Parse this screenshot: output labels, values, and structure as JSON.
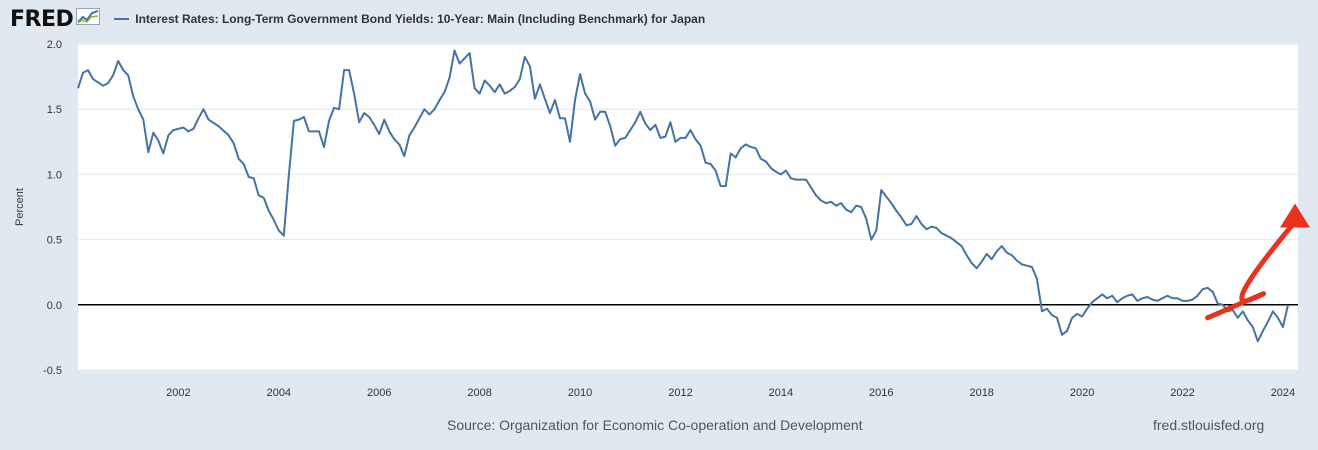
{
  "header": {
    "logo_text": "FRED",
    "legend_label": "Interest Rates: Long-Term Government Bond Yields: 10-Year: Main (Including Benchmark) for Japan"
  },
  "footer": {
    "source": "Source: Organization for Economic Co-operation and Development",
    "credit": "fred.stlouisfed.org"
  },
  "colors": {
    "series": "#4572a7",
    "arrow": "#e8321e",
    "zero_line": "#000000",
    "grid": "#e6e6e6"
  },
  "chart_data": {
    "type": "line",
    "title": "",
    "xlabel": "",
    "ylabel": "Percent",
    "xlim": [
      2000.0,
      2024.3
    ],
    "ylim": [
      -0.5,
      2.0
    ],
    "yticks": [
      "2.0",
      "1.5",
      "1.0",
      "0.5",
      "0.0",
      "-0.5"
    ],
    "ytick_values": [
      2.0,
      1.5,
      1.0,
      0.5,
      0.0,
      -0.5
    ],
    "xticks": [
      "2002",
      "2004",
      "2006",
      "2008",
      "2010",
      "2012",
      "2014",
      "2016",
      "2018",
      "2020",
      "2022",
      "2024"
    ],
    "xtick_values": [
      2002,
      2004,
      2006,
      2008,
      2010,
      2012,
      2014,
      2016,
      2018,
      2020,
      2022,
      2024
    ],
    "grid": "horizontal",
    "zero_line": true,
    "annotations": [
      {
        "type": "arrow",
        "from": [
          2022.5,
          -0.1
        ],
        "to": [
          2024.3,
          0.7
        ]
      }
    ],
    "series": [
      {
        "name": "Interest Rates: Long-Term Government Bond Yields: 10-Year: Main (Including Benchmark) for Japan",
        "points": [
          [
            2000.0,
            1.66
          ],
          [
            2000.1,
            1.78
          ],
          [
            2000.2,
            1.8
          ],
          [
            2000.3,
            1.73
          ],
          [
            2000.5,
            1.68
          ],
          [
            2000.6,
            1.7
          ],
          [
            2000.7,
            1.76
          ],
          [
            2000.8,
            1.87
          ],
          [
            2000.9,
            1.8
          ],
          [
            2001.0,
            1.76
          ],
          [
            2001.1,
            1.6
          ],
          [
            2001.2,
            1.5
          ],
          [
            2001.3,
            1.42
          ],
          [
            2001.4,
            1.17
          ],
          [
            2001.5,
            1.32
          ],
          [
            2001.6,
            1.26
          ],
          [
            2001.7,
            1.16
          ],
          [
            2001.8,
            1.3
          ],
          [
            2001.9,
            1.34
          ],
          [
            2002.0,
            1.35
          ],
          [
            2002.1,
            1.36
          ],
          [
            2002.2,
            1.33
          ],
          [
            2002.3,
            1.35
          ],
          [
            2002.4,
            1.43
          ],
          [
            2002.5,
            1.5
          ],
          [
            2002.6,
            1.42
          ],
          [
            2002.8,
            1.37
          ],
          [
            2003.0,
            1.3
          ],
          [
            2003.1,
            1.24
          ],
          [
            2003.2,
            1.12
          ],
          [
            2003.3,
            1.08
          ],
          [
            2003.4,
            0.98
          ],
          [
            2003.5,
            0.97
          ],
          [
            2003.6,
            0.84
          ],
          [
            2003.7,
            0.82
          ],
          [
            2003.8,
            0.72
          ],
          [
            2003.9,
            0.65
          ],
          [
            2004.0,
            0.57
          ],
          [
            2004.1,
            0.53
          ],
          [
            2004.2,
            1.0
          ],
          [
            2004.3,
            1.41
          ],
          [
            2004.4,
            1.42
          ],
          [
            2004.5,
            1.44
          ],
          [
            2004.6,
            1.33
          ],
          [
            2004.8,
            1.33
          ],
          [
            2004.9,
            1.21
          ],
          [
            2005.0,
            1.41
          ],
          [
            2005.1,
            1.51
          ],
          [
            2005.2,
            1.5
          ],
          [
            2005.3,
            1.8
          ],
          [
            2005.4,
            1.8
          ],
          [
            2005.5,
            1.62
          ],
          [
            2005.6,
            1.4
          ],
          [
            2005.7,
            1.47
          ],
          [
            2005.8,
            1.44
          ],
          [
            2005.9,
            1.38
          ],
          [
            2006.0,
            1.31
          ],
          [
            2006.1,
            1.42
          ],
          [
            2006.2,
            1.33
          ],
          [
            2006.3,
            1.27
          ],
          [
            2006.4,
            1.23
          ],
          [
            2006.5,
            1.14
          ],
          [
            2006.6,
            1.3
          ],
          [
            2006.7,
            1.36
          ],
          [
            2006.8,
            1.43
          ],
          [
            2006.9,
            1.5
          ],
          [
            2007.0,
            1.46
          ],
          [
            2007.1,
            1.5
          ],
          [
            2007.2,
            1.57
          ],
          [
            2007.3,
            1.63
          ],
          [
            2007.4,
            1.74
          ],
          [
            2007.5,
            1.95
          ],
          [
            2007.6,
            1.85
          ],
          [
            2007.7,
            1.89
          ],
          [
            2007.8,
            1.93
          ],
          [
            2007.9,
            1.66
          ],
          [
            2008.0,
            1.62
          ],
          [
            2008.1,
            1.72
          ],
          [
            2008.2,
            1.68
          ],
          [
            2008.3,
            1.63
          ],
          [
            2008.4,
            1.69
          ],
          [
            2008.5,
            1.62
          ],
          [
            2008.6,
            1.64
          ],
          [
            2008.7,
            1.67
          ],
          [
            2008.8,
            1.73
          ],
          [
            2008.9,
            1.9
          ],
          [
            2009.0,
            1.83
          ],
          [
            2009.1,
            1.58
          ],
          [
            2009.2,
            1.69
          ],
          [
            2009.3,
            1.58
          ],
          [
            2009.4,
            1.47
          ],
          [
            2009.5,
            1.57
          ],
          [
            2009.6,
            1.43
          ],
          [
            2009.7,
            1.43
          ],
          [
            2009.8,
            1.25
          ],
          [
            2009.9,
            1.57
          ],
          [
            2010.0,
            1.77
          ],
          [
            2010.1,
            1.62
          ],
          [
            2010.2,
            1.56
          ],
          [
            2010.3,
            1.42
          ],
          [
            2010.4,
            1.48
          ],
          [
            2010.5,
            1.48
          ],
          [
            2010.6,
            1.37
          ],
          [
            2010.7,
            1.22
          ],
          [
            2010.8,
            1.27
          ],
          [
            2010.9,
            1.28
          ],
          [
            2011.0,
            1.34
          ],
          [
            2011.1,
            1.4
          ],
          [
            2011.2,
            1.48
          ],
          [
            2011.3,
            1.39
          ],
          [
            2011.4,
            1.34
          ],
          [
            2011.5,
            1.38
          ],
          [
            2011.6,
            1.28
          ],
          [
            2011.7,
            1.29
          ],
          [
            2011.8,
            1.4
          ],
          [
            2011.9,
            1.25
          ],
          [
            2012.0,
            1.28
          ],
          [
            2012.1,
            1.28
          ],
          [
            2012.2,
            1.34
          ],
          [
            2012.3,
            1.27
          ],
          [
            2012.4,
            1.22
          ],
          [
            2012.5,
            1.09
          ],
          [
            2012.6,
            1.08
          ],
          [
            2012.7,
            1.03
          ],
          [
            2012.8,
            0.91
          ],
          [
            2012.9,
            0.91
          ],
          [
            2013.0,
            1.16
          ],
          [
            2013.1,
            1.13
          ],
          [
            2013.2,
            1.2
          ],
          [
            2013.3,
            1.23
          ],
          [
            2013.4,
            1.21
          ],
          [
            2013.5,
            1.2
          ],
          [
            2013.6,
            1.12
          ],
          [
            2013.7,
            1.1
          ],
          [
            2013.8,
            1.05
          ],
          [
            2013.9,
            1.02
          ],
          [
            2014.0,
            1.0
          ],
          [
            2014.1,
            1.03
          ],
          [
            2014.2,
            0.97
          ],
          [
            2014.3,
            0.96
          ],
          [
            2014.4,
            0.96
          ],
          [
            2014.5,
            0.96
          ],
          [
            2014.6,
            0.9
          ],
          [
            2014.7,
            0.84
          ],
          [
            2014.8,
            0.8
          ],
          [
            2014.9,
            0.78
          ],
          [
            2015.0,
            0.79
          ],
          [
            2015.1,
            0.76
          ],
          [
            2015.2,
            0.78
          ],
          [
            2015.3,
            0.73
          ],
          [
            2015.4,
            0.71
          ],
          [
            2015.5,
            0.76
          ],
          [
            2015.6,
            0.75
          ],
          [
            2015.7,
            0.66
          ],
          [
            2015.8,
            0.5
          ],
          [
            2015.9,
            0.57
          ],
          [
            2016.0,
            0.88
          ],
          [
            2016.1,
            0.83
          ],
          [
            2016.2,
            0.78
          ],
          [
            2016.3,
            0.72
          ],
          [
            2016.4,
            0.67
          ],
          [
            2016.5,
            0.61
          ],
          [
            2016.6,
            0.62
          ],
          [
            2016.7,
            0.68
          ],
          [
            2016.8,
            0.62
          ],
          [
            2016.9,
            0.58
          ],
          [
            2017.0,
            0.6
          ],
          [
            2017.1,
            0.59
          ],
          [
            2017.2,
            0.55
          ],
          [
            2017.3,
            0.53
          ],
          [
            2017.4,
            0.51
          ],
          [
            2017.5,
            0.48
          ],
          [
            2017.6,
            0.45
          ],
          [
            2017.7,
            0.38
          ],
          [
            2017.8,
            0.32
          ],
          [
            2017.9,
            0.28
          ],
          [
            2018.0,
            0.33
          ],
          [
            2018.1,
            0.39
          ],
          [
            2018.2,
            0.35
          ],
          [
            2018.3,
            0.41
          ],
          [
            2018.4,
            0.45
          ],
          [
            2018.5,
            0.4
          ],
          [
            2018.6,
            0.38
          ],
          [
            2018.7,
            0.34
          ],
          [
            2018.8,
            0.31
          ],
          [
            2018.9,
            0.3
          ],
          [
            2019.0,
            0.29
          ],
          [
            2019.1,
            0.2
          ],
          [
            2019.2,
            -0.05
          ],
          [
            2019.3,
            -0.03
          ],
          [
            2019.4,
            -0.08
          ],
          [
            2019.5,
            -0.1
          ],
          [
            2019.6,
            -0.23
          ],
          [
            2019.7,
            -0.2
          ],
          [
            2019.8,
            -0.1
          ],
          [
            2019.9,
            -0.07
          ],
          [
            2020.0,
            -0.09
          ],
          [
            2020.1,
            -0.03
          ],
          [
            2020.2,
            0.02
          ],
          [
            2020.3,
            0.05
          ],
          [
            2020.4,
            0.08
          ],
          [
            2020.5,
            0.05
          ],
          [
            2020.6,
            0.07
          ],
          [
            2020.7,
            0.02
          ],
          [
            2020.8,
            0.05
          ],
          [
            2020.9,
            0.07
          ],
          [
            2021.0,
            0.08
          ],
          [
            2021.1,
            0.03
          ],
          [
            2021.2,
            0.05
          ],
          [
            2021.3,
            0.06
          ],
          [
            2021.4,
            0.04
          ],
          [
            2021.5,
            0.03
          ],
          [
            2021.6,
            0.05
          ],
          [
            2021.7,
            0.07
          ],
          [
            2021.8,
            0.05
          ],
          [
            2021.9,
            0.05
          ],
          [
            2022.0,
            0.03
          ],
          [
            2022.1,
            0.03
          ],
          [
            2022.2,
            0.04
          ],
          [
            2022.3,
            0.07
          ],
          [
            2022.4,
            0.12
          ],
          [
            2022.5,
            0.13
          ],
          [
            2022.6,
            0.1
          ],
          [
            2022.7,
            0.01
          ],
          [
            2022.8,
            0.0
          ],
          [
            2022.9,
            -0.05
          ],
          [
            2023.0,
            -0.04
          ],
          [
            2023.1,
            -0.1
          ],
          [
            2023.2,
            -0.05
          ],
          [
            2023.3,
            -0.12
          ],
          [
            2023.4,
            -0.17
          ],
          [
            2023.5,
            -0.28
          ],
          [
            2023.6,
            -0.2
          ],
          [
            2023.7,
            -0.13
          ],
          [
            2023.8,
            -0.05
          ],
          [
            2023.9,
            -0.1
          ],
          [
            2024.0,
            -0.17
          ],
          [
            2024.1,
            0.0
          ]
        ]
      }
    ]
  }
}
